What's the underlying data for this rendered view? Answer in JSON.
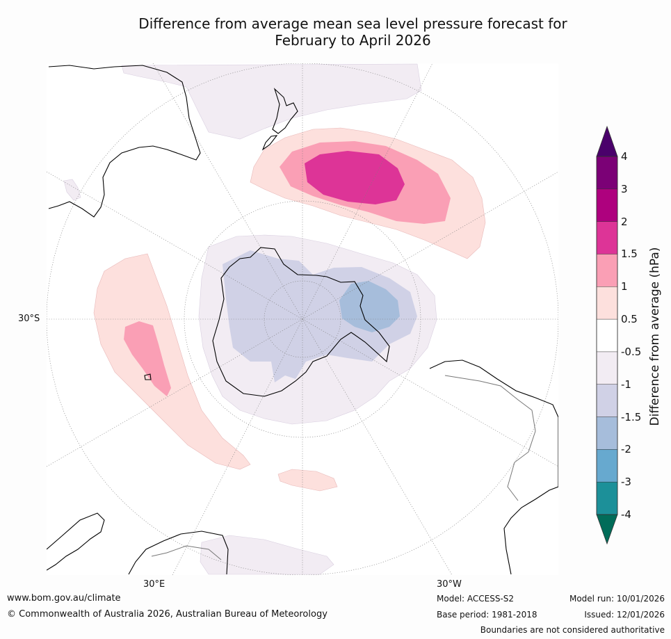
{
  "title": {
    "line1": "Difference from average mean sea level pressure forecast for",
    "line2": "February to April 2026"
  },
  "map": {
    "projection": "south-polar stereographic",
    "center": "South Pole",
    "lat_labels": [
      "30°S"
    ],
    "lon_labels": [
      "30°E",
      "30°W"
    ]
  },
  "colorbar": {
    "title": "Difference from average (hPa)",
    "extend": "both",
    "bins": [
      {
        "range": "above 4",
        "color": "#4a016b"
      },
      {
        "range": "3 to 4",
        "color": "#7b0176"
      },
      {
        "range": "2 to 3",
        "color": "#ae017e"
      },
      {
        "range": "1.5 to 2",
        "color": "#dd3497"
      },
      {
        "range": "1 to 1.5",
        "color": "#fa9fb5"
      },
      {
        "range": "0.5 to 1",
        "color": "#fde0dd"
      },
      {
        "range": "-0.5 to 0.5",
        "color": "#ffffff"
      },
      {
        "range": "-1 to -0.5",
        "color": "#f2ecf3"
      },
      {
        "range": "-1.5 to -1",
        "color": "#d0d1e6"
      },
      {
        "range": "-2 to -1.5",
        "color": "#a6bddb"
      },
      {
        "range": "-3 to -2",
        "color": "#67a9cf"
      },
      {
        "range": "-4 to -3",
        "color": "#1c9099"
      },
      {
        "range": "below -4",
        "color": "#016c59"
      }
    ],
    "tick_labels": [
      "4",
      "3",
      "2",
      "1.5",
      "1",
      "0.5",
      "-0.5",
      "-1",
      "-1.5",
      "-2",
      "-3",
      "-4"
    ]
  },
  "footer": {
    "website": "www.bom.gov.au/climate",
    "copyright": "© Commonwealth of Australia 2026, Australian Bureau of Meteorology",
    "model": "Model: ACCESS-S2",
    "base_period": "Base period: 1981-2018",
    "model_run": "Model run: 10/01/2026",
    "issued": "Issued: 12/01/2026",
    "disclaimer": "Boundaries are not considered authoritative"
  }
}
